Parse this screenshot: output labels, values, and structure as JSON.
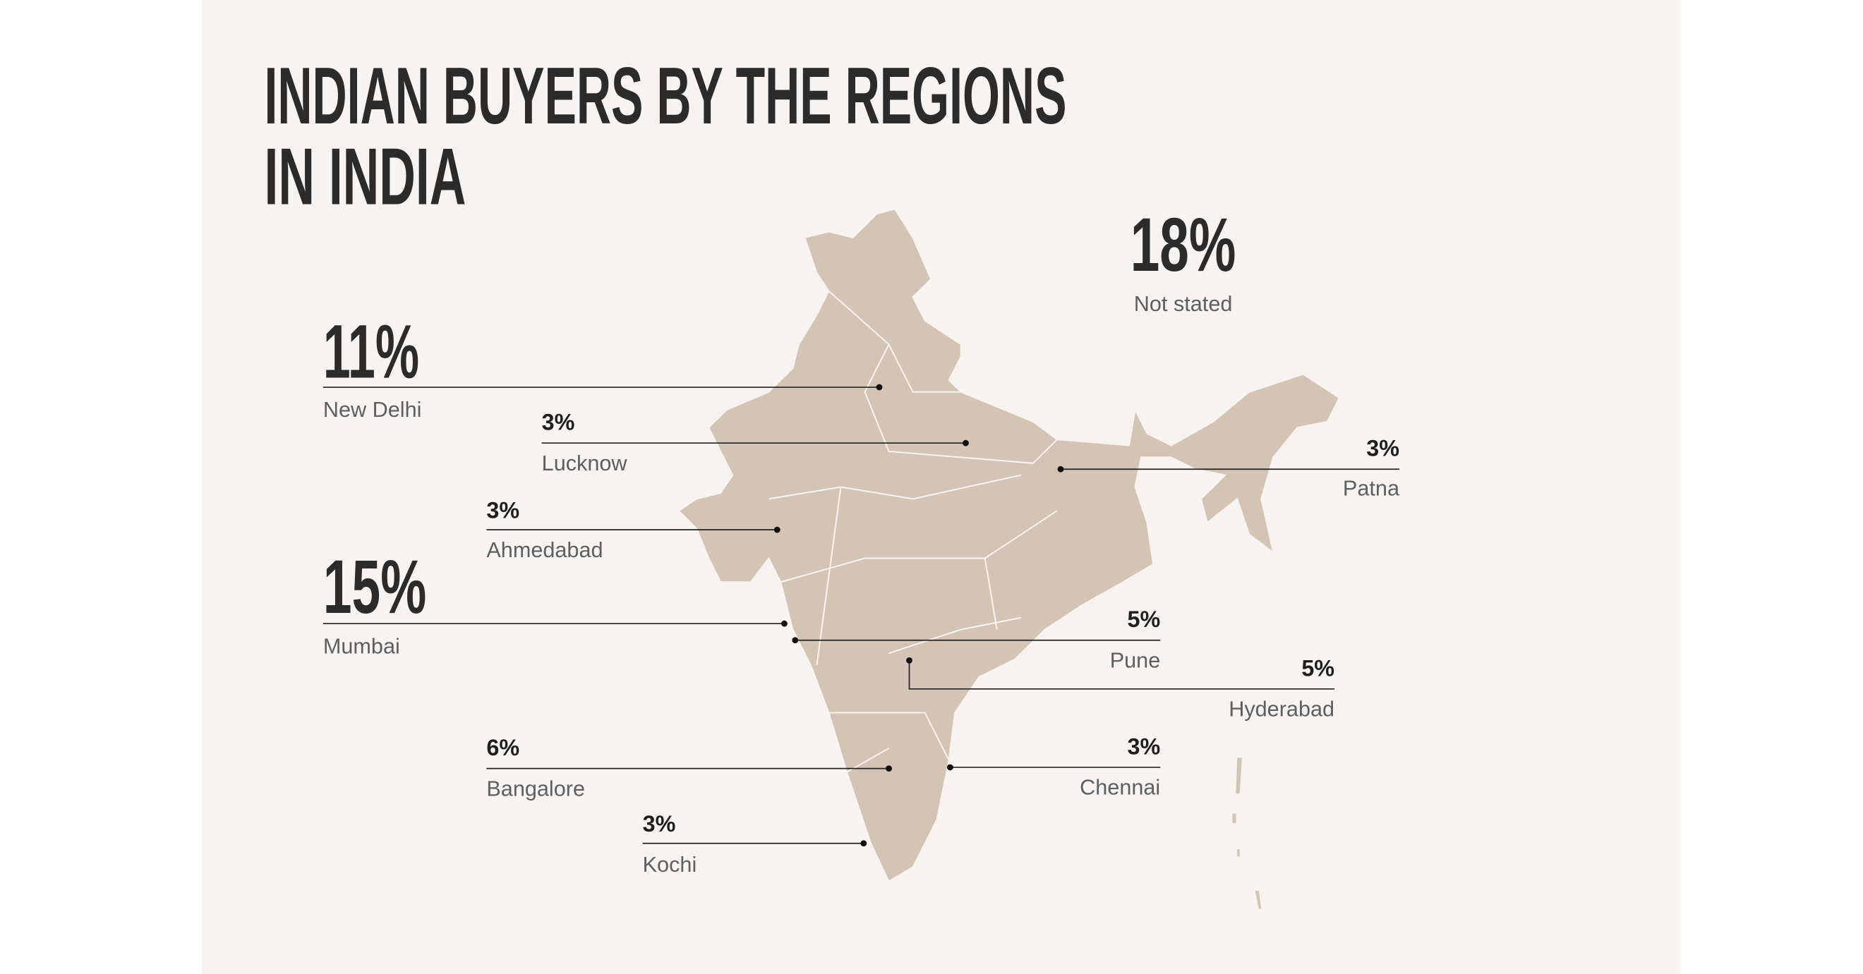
{
  "title": [
    "INDIAN BUYERS BY THE REGIONS",
    "IN INDIA"
  ],
  "regions": [
    {
      "share": "18%",
      "name": "Not stated"
    },
    {
      "share": "11%",
      "name": "New Delhi"
    },
    {
      "share": "3%",
      "name": "Lucknow"
    },
    {
      "share": "3%",
      "name": "Patna"
    },
    {
      "share": "3%",
      "name": "Ahmedabad"
    },
    {
      "share": "15%",
      "name": "Mumbai"
    },
    {
      "share": "5%",
      "name": "Pune"
    },
    {
      "share": "5%",
      "name": "Hyderabad"
    },
    {
      "share": "6%",
      "name": "Bangalore"
    },
    {
      "share": "3%",
      "name": "Chennai"
    },
    {
      "share": "3%",
      "name": "Kochi"
    }
  ]
}
